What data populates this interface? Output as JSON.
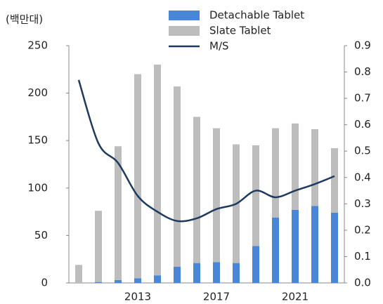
{
  "chart_data": {
    "type": "bar",
    "y_label": "(백만대)",
    "categories": [
      null,
      null,
      null,
      "2013",
      null,
      null,
      null,
      "2017",
      null,
      null,
      null,
      "2021",
      null,
      null
    ],
    "series": [
      {
        "name": "Detachable Tablet",
        "color": "#4a86d8",
        "stack": true,
        "values": [
          0,
          1,
          3,
          5,
          8,
          17,
          21,
          22,
          21,
          39,
          69,
          77,
          81,
          74
        ]
      },
      {
        "name": "Slate Tablet",
        "color": "#bdbdbd",
        "stack": true,
        "values": [
          19,
          75,
          141,
          215,
          222,
          190,
          154,
          141,
          125,
          106,
          94,
          91,
          81,
          68
        ]
      },
      {
        "name": "M/S",
        "color": "#1f3a5f",
        "type": "line",
        "axis": "y2",
        "values": [
          0.77,
          0.53,
          0.455,
          0.33,
          0.27,
          0.235,
          0.245,
          0.28,
          0.3,
          0.35,
          0.325,
          0.35,
          0.375,
          0.405
        ]
      }
    ],
    "ylim": [
      0,
      250
    ],
    "yticks": [
      0,
      50,
      100,
      150,
      200,
      250
    ],
    "y2lim": [
      0,
      0.9
    ],
    "y2ticks": [
      {
        "value": 0,
        "label": "0.0"
      },
      0.1,
      0.2,
      0.3,
      0.4,
      0.5,
      0.6,
      0.7,
      0.8,
      0.9
    ],
    "legend": "top-right"
  }
}
